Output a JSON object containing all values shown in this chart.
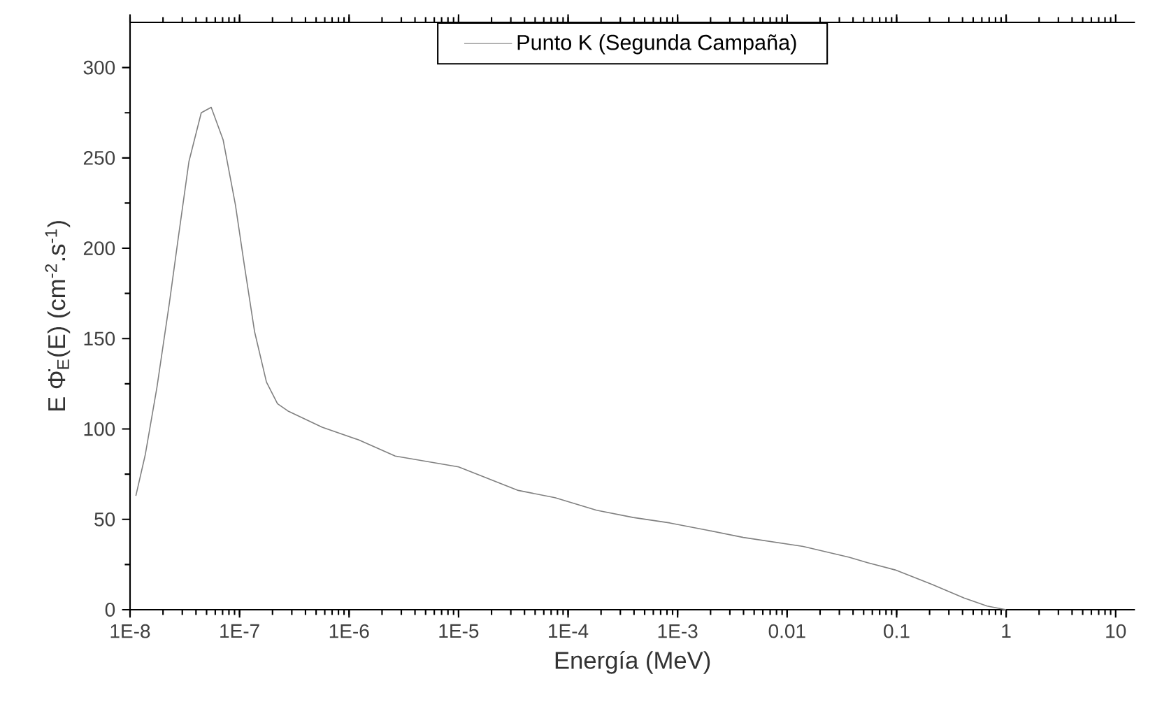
{
  "chart_data": {
    "type": "line",
    "xlabel": "Energía (MeV)",
    "ylabel": "E Φ̇$_{E}$(E) (cm$^{-2}$.s$^{-1}$)",
    "log": "x",
    "legend": "top",
    "line_style": "solid",
    "xlim": [
      1e-08,
      15
    ],
    "ylim": [
      0,
      325
    ],
    "xticks": [
      {
        "value": 1e-08,
        "label": "1E-8"
      },
      {
        "value": 1e-07,
        "label": "1E-7"
      },
      {
        "value": 1e-06,
        "label": "1E-6"
      },
      {
        "value": 1e-05,
        "label": "1E-5"
      },
      {
        "value": 0.0001,
        "label": "1E-4"
      },
      {
        "value": 0.001,
        "label": "1E-3"
      },
      0.01,
      0.1,
      1,
      10
    ],
    "yticks": [
      0,
      50,
      100,
      150,
      200,
      250,
      300
    ],
    "series": [
      {
        "name": "Punto K (Segunda Campaña)",
        "color": "#808080",
        "x": [
          1.13e-08,
          1.38e-08,
          1.76e-08,
          2.29e-08,
          2.76e-08,
          3.45e-08,
          4.47e-08,
          5.51e-08,
          7.08e-08,
          9.17e-08,
          1.11e-07,
          1.37e-07,
          1.76e-07,
          2.22e-07,
          2.76e-07,
          5.68e-07,
          1.22e-06,
          2.64e-06,
          1e-05,
          3.51e-05,
          7.59e-05,
          0.000182,
          0.000394,
          0.000851,
          0.00186,
          0.00398,
          0.014,
          0.0369,
          0.0543,
          0.097,
          0.21,
          0.413,
          0.67,
          1.0
        ],
        "values": [
          63,
          86,
          123,
          170,
          206,
          248,
          275,
          278,
          260,
          224,
          190,
          154,
          126,
          114,
          110,
          101,
          94,
          85,
          79,
          66,
          62,
          55,
          51,
          48,
          44,
          40,
          35,
          29,
          26,
          22,
          14,
          6.5,
          2,
          0
        ]
      }
    ]
  }
}
